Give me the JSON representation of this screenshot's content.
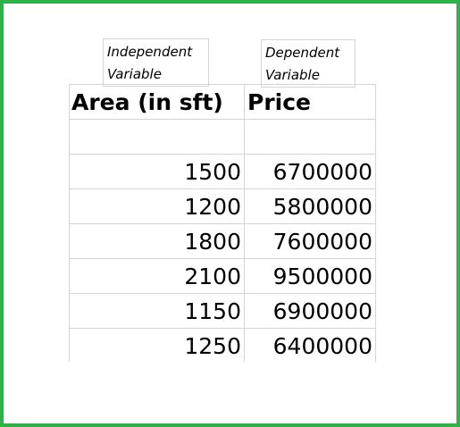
{
  "labels": {
    "independent": "Independent\nVariable",
    "dependent": "Dependent\nVariable"
  },
  "table": {
    "headers": [
      "Area (in sft)",
      "Price"
    ],
    "rows": [
      [
        "1500",
        "6700000"
      ],
      [
        "1200",
        "5800000"
      ],
      [
        "1800",
        "7600000"
      ],
      [
        "2100",
        "9500000"
      ],
      [
        "1150",
        "6900000"
      ],
      [
        "1250",
        "6400000"
      ]
    ]
  },
  "colors": {
    "frame": "#2db34a",
    "gridline": "#d4d4d4"
  }
}
